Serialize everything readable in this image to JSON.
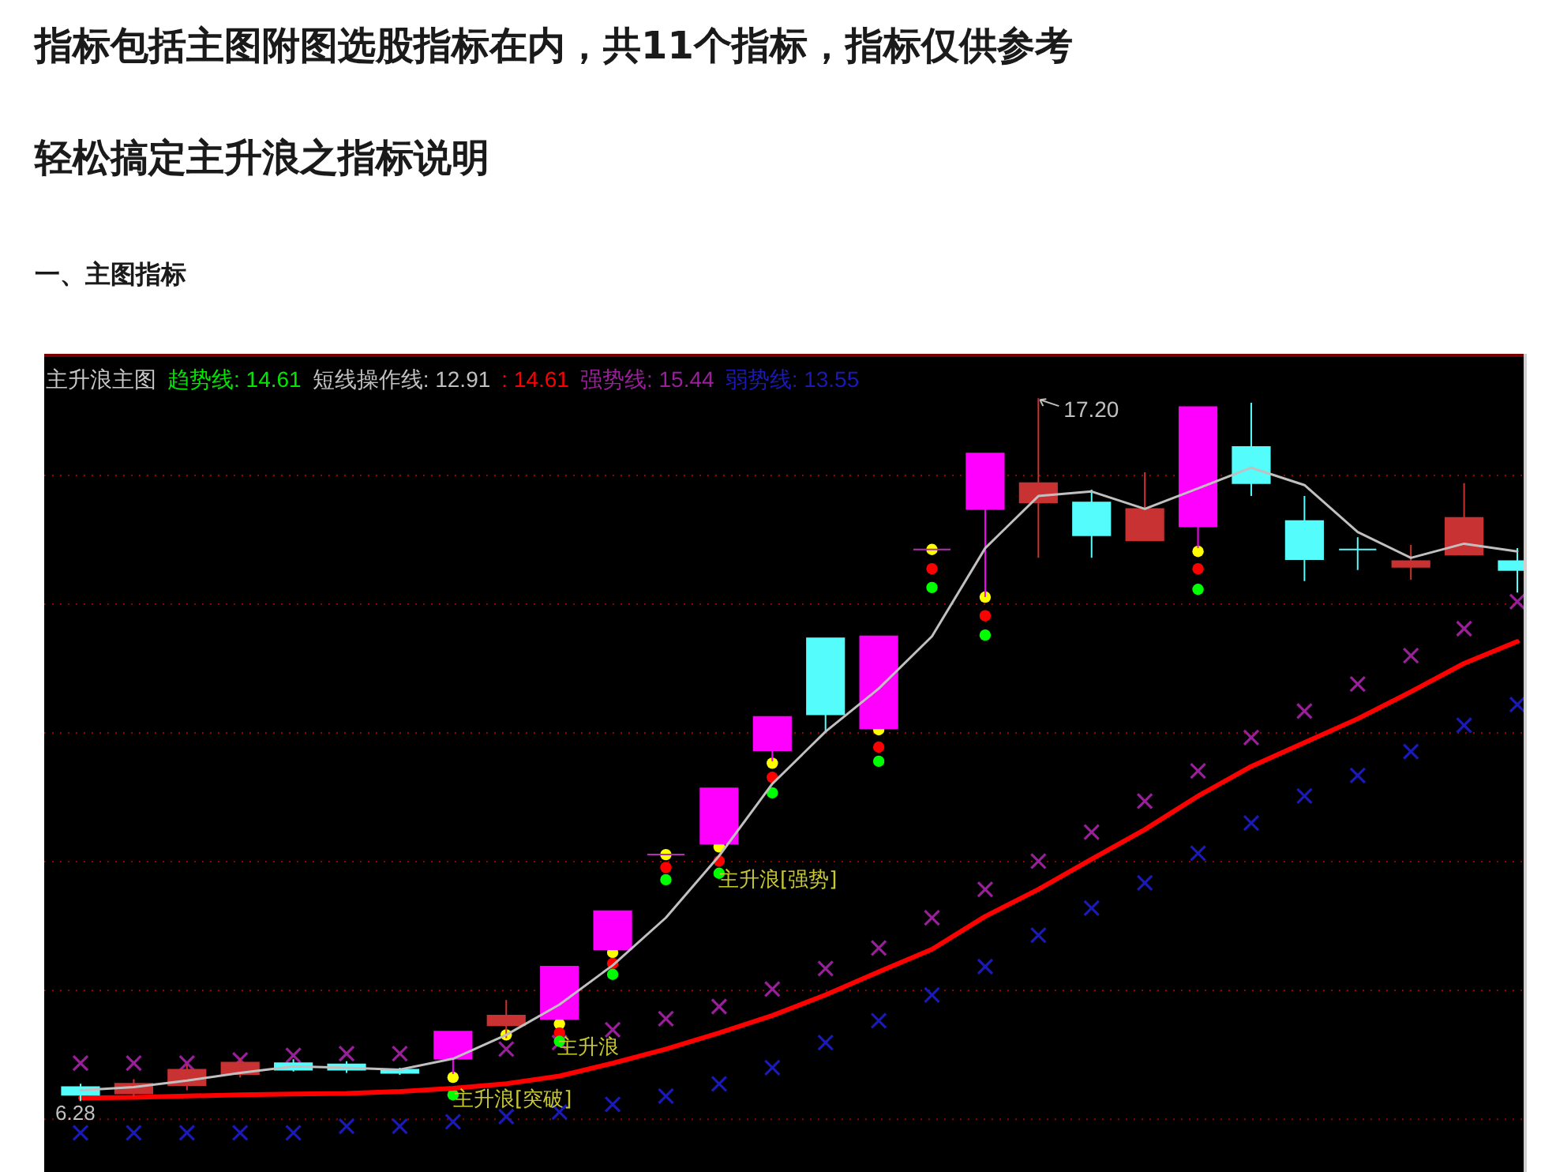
{
  "chart_data": {
    "type": "candlestick",
    "title": "指标包括主图附图选股指标在内，共11个指标，指标仅供参考",
    "subtitle": "轻松搞定主升浪之指标说明",
    "categories": [
      null,
      null,
      null,
      null,
      null,
      null,
      null,
      null,
      null,
      null,
      null,
      null,
      null,
      null,
      null,
      null,
      null,
      null,
      null,
      null,
      null,
      null,
      null,
      null,
      null,
      null,
      null,
      null
    ],
    "ohlc": [
      [
        6.5,
        6.55,
        6.28,
        6.38
      ],
      [
        6.4,
        6.62,
        6.35,
        6.55
      ],
      [
        6.53,
        6.85,
        6.45,
        6.77
      ],
      [
        6.7,
        6.95,
        6.65,
        6.88
      ],
      [
        6.87,
        6.93,
        6.74,
        6.77
      ],
      [
        6.85,
        6.9,
        6.72,
        6.77
      ],
      [
        6.77,
        6.8,
        6.69,
        6.72
      ],
      [
        6.94,
        7.36,
        6.7,
        7.36
      ],
      [
        7.46,
        7.85,
        7.26,
        7.61
      ],
      [
        7.56,
        8.37,
        7.56,
        8.37
      ],
      [
        8.64,
        9.23,
        8.64,
        9.23
      ],
      [
        10.11,
        10.11,
        10.11,
        10.11
      ],
      [
        10.28,
        11.14,
        10.28,
        11.14
      ],
      [
        11.73,
        12.25,
        11.56,
        12.25
      ],
      [
        13.47,
        13.47,
        12.02,
        12.29
      ],
      [
        12.07,
        13.5,
        12.07,
        13.5
      ],
      [
        14.85,
        14.85,
        14.85,
        14.85
      ],
      [
        15.48,
        16.34,
        14.11,
        16.34
      ],
      [
        15.58,
        17.2,
        14.72,
        15.88
      ],
      [
        15.58,
        15.78,
        14.72,
        15.07
      ],
      [
        14.99,
        16.05,
        14.99,
        15.48
      ],
      [
        15.21,
        17.06,
        14.87,
        17.06
      ],
      [
        16.44,
        17.13,
        15.68,
        15.88
      ],
      [
        15.29,
        15.68,
        14.36,
        14.7
      ],
      [
        14.85,
        15.04,
        14.53,
        14.85
      ],
      [
        14.58,
        14.92,
        14.38,
        14.67
      ],
      [
        14.77,
        15.88,
        14.77,
        15.34
      ],
      [
        14.67,
        14.87,
        14.18,
        14.53
      ]
    ],
    "colors": [
      "#54fcfc",
      "#c83232",
      "#c83232",
      "#c83232",
      "#54fcfc",
      "#54fcfc",
      "#54fcfc",
      "#ff00ff",
      "#c83232",
      "#ff00ff",
      "#ff00ff",
      "#b42db4",
      "#ff00ff",
      "#ff00ff",
      "#54fcfc",
      "#ff00ff",
      "#b42db4",
      "#ff00ff",
      "#c83232",
      "#54fcfc",
      "#c83232",
      "#ff00ff",
      "#54fcfc",
      "#54fcfc",
      "#54fcfc",
      "#c83232",
      "#c83232",
      "#54fcfc"
    ],
    "series": [
      {
        "name": "短线操作线: 12.91",
        "type": "line",
        "color": "#c0c0c0",
        "values": [
          6.45,
          6.5,
          6.6,
          6.72,
          6.82,
          6.8,
          6.77,
          6.94,
          7.31,
          7.78,
          8.39,
          9.13,
          10.09,
          11.21,
          12.02,
          12.69,
          13.5,
          14.87,
          15.68,
          15.75,
          15.48,
          15.8,
          16.12,
          15.85,
          15.12,
          14.72,
          14.94,
          14.82
        ]
      },
      {
        "name": ": 14.61",
        "type": "line",
        "color": "#ff0000",
        "values": [
          6.33,
          6.34,
          6.36,
          6.38,
          6.39,
          6.4,
          6.43,
          6.48,
          6.55,
          6.67,
          6.87,
          7.09,
          7.34,
          7.61,
          7.93,
          8.29,
          8.64,
          9.15,
          9.57,
          10.04,
          10.5,
          11.02,
          11.48,
          11.85,
          12.22,
          12.64,
          13.08,
          13.42
        ]
      },
      {
        "name": "强势线: 15.44",
        "type": "scatter",
        "marker": "cross",
        "color": "#9a1f9a",
        "values": [
          6.87,
          6.87,
          6.87,
          6.92,
          6.99,
          7.02,
          7.02,
          null,
          7.09,
          7.19,
          7.39,
          7.56,
          7.75,
          8.02,
          8.34,
          8.66,
          9.13,
          9.57,
          10.01,
          10.46,
          10.94,
          11.41,
          11.93,
          12.34,
          12.76,
          13.2,
          13.62,
          14.04
        ]
      },
      {
        "name": "弱势线: 13.55",
        "type": "scatter",
        "marker": "cross",
        "color": "#1a1ab8",
        "values": [
          5.79,
          5.79,
          5.79,
          5.79,
          5.79,
          5.89,
          5.89,
          5.96,
          6.04,
          6.11,
          6.23,
          6.36,
          6.55,
          6.8,
          7.19,
          7.53,
          7.93,
          8.37,
          8.86,
          9.28,
          9.67,
          10.13,
          10.6,
          11.02,
          11.34,
          11.71,
          12.12,
          12.44
        ]
      },
      {
        "type": "scatter",
        "marker": "circle",
        "color": "#ffff00",
        "values": [
          null,
          null,
          null,
          null,
          null,
          null,
          null,
          6.65,
          7.31,
          7.48,
          8.59,
          10.11,
          10.23,
          11.53,
          null,
          12.05,
          14.85,
          14.11,
          null,
          null,
          null,
          14.82,
          null,
          null,
          null,
          null,
          null,
          null
        ]
      },
      {
        "type": "scatter",
        "marker": "circle",
        "color": "#ff0000",
        "values": [
          null,
          null,
          null,
          null,
          null,
          null,
          null,
          null,
          null,
          7.34,
          8.42,
          9.91,
          10.01,
          11.31,
          null,
          11.78,
          14.55,
          13.82,
          null,
          null,
          null,
          14.55,
          null,
          null,
          null,
          null,
          null,
          null
        ]
      },
      {
        "type": "scatter",
        "marker": "circle",
        "color": "#00ff00",
        "values": [
          null,
          null,
          null,
          null,
          null,
          null,
          null,
          6.38,
          null,
          7.21,
          8.25,
          9.72,
          9.82,
          11.07,
          null,
          11.56,
          14.26,
          13.52,
          null,
          null,
          null,
          14.23,
          null,
          null,
          null,
          null,
          null,
          null
        ]
      }
    ],
    "ylim": [
      5.18,
      17.84
    ],
    "yticks": [
      {
        "value": 6,
        "label": null
      },
      {
        "value": 8,
        "label": null
      },
      {
        "value": 10,
        "label": null
      },
      {
        "value": 12,
        "label": null
      },
      {
        "value": 14,
        "label": null
      },
      {
        "value": 16,
        "label": null
      }
    ],
    "grid": "y",
    "legend": "top left",
    "annotations": [
      "一、主图指标",
      "主升浪主图",
      "趋势线: 14.61",
      "17.20",
      "6.28",
      "主升浪[突破]",
      "主升浪",
      "主升浪[强势]"
    ]
  }
}
